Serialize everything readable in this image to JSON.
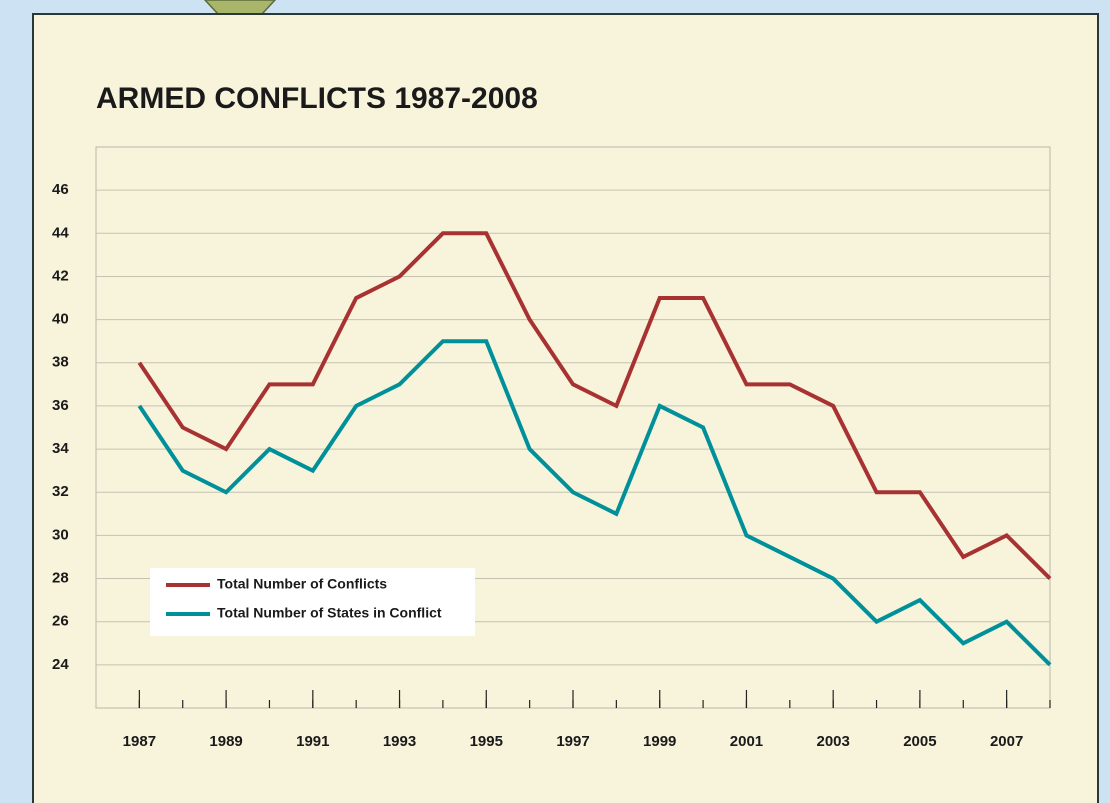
{
  "chart_data": {
    "type": "line",
    "title": "ARMED CONFLICTS 1987-2008",
    "x": [
      1987,
      1988,
      1989,
      1990,
      1991,
      1992,
      1993,
      1994,
      1995,
      1996,
      1997,
      1998,
      1999,
      2000,
      2001,
      2002,
      2003,
      2004,
      2005,
      2006,
      2007,
      2008
    ],
    "series": [
      {
        "name": "Total Number of Conflicts",
        "color": "#a83232",
        "values": [
          38,
          35,
          34,
          37,
          37,
          41,
          42,
          44,
          44,
          40,
          37,
          36,
          41,
          41,
          37,
          37,
          36,
          32,
          32,
          29,
          30,
          28
        ]
      },
      {
        "name": "Total Number of States in Conflict",
        "color": "#00909a",
        "values": [
          36,
          33,
          32,
          34,
          33,
          36,
          37,
          39,
          39,
          34,
          32,
          31,
          36,
          35,
          30,
          29,
          28,
          26,
          27,
          25,
          26,
          24
        ]
      }
    ],
    "xlim": [
      1986,
      2008
    ],
    "xticks": [
      1987,
      1989,
      1991,
      1993,
      1995,
      1997,
      1999,
      2001,
      2003,
      2005,
      2007
    ],
    "ylim": [
      22,
      48
    ],
    "yticks": [
      24,
      26,
      28,
      30,
      32,
      34,
      36,
      38,
      40,
      42,
      44,
      46
    ],
    "grid": true
  }
}
